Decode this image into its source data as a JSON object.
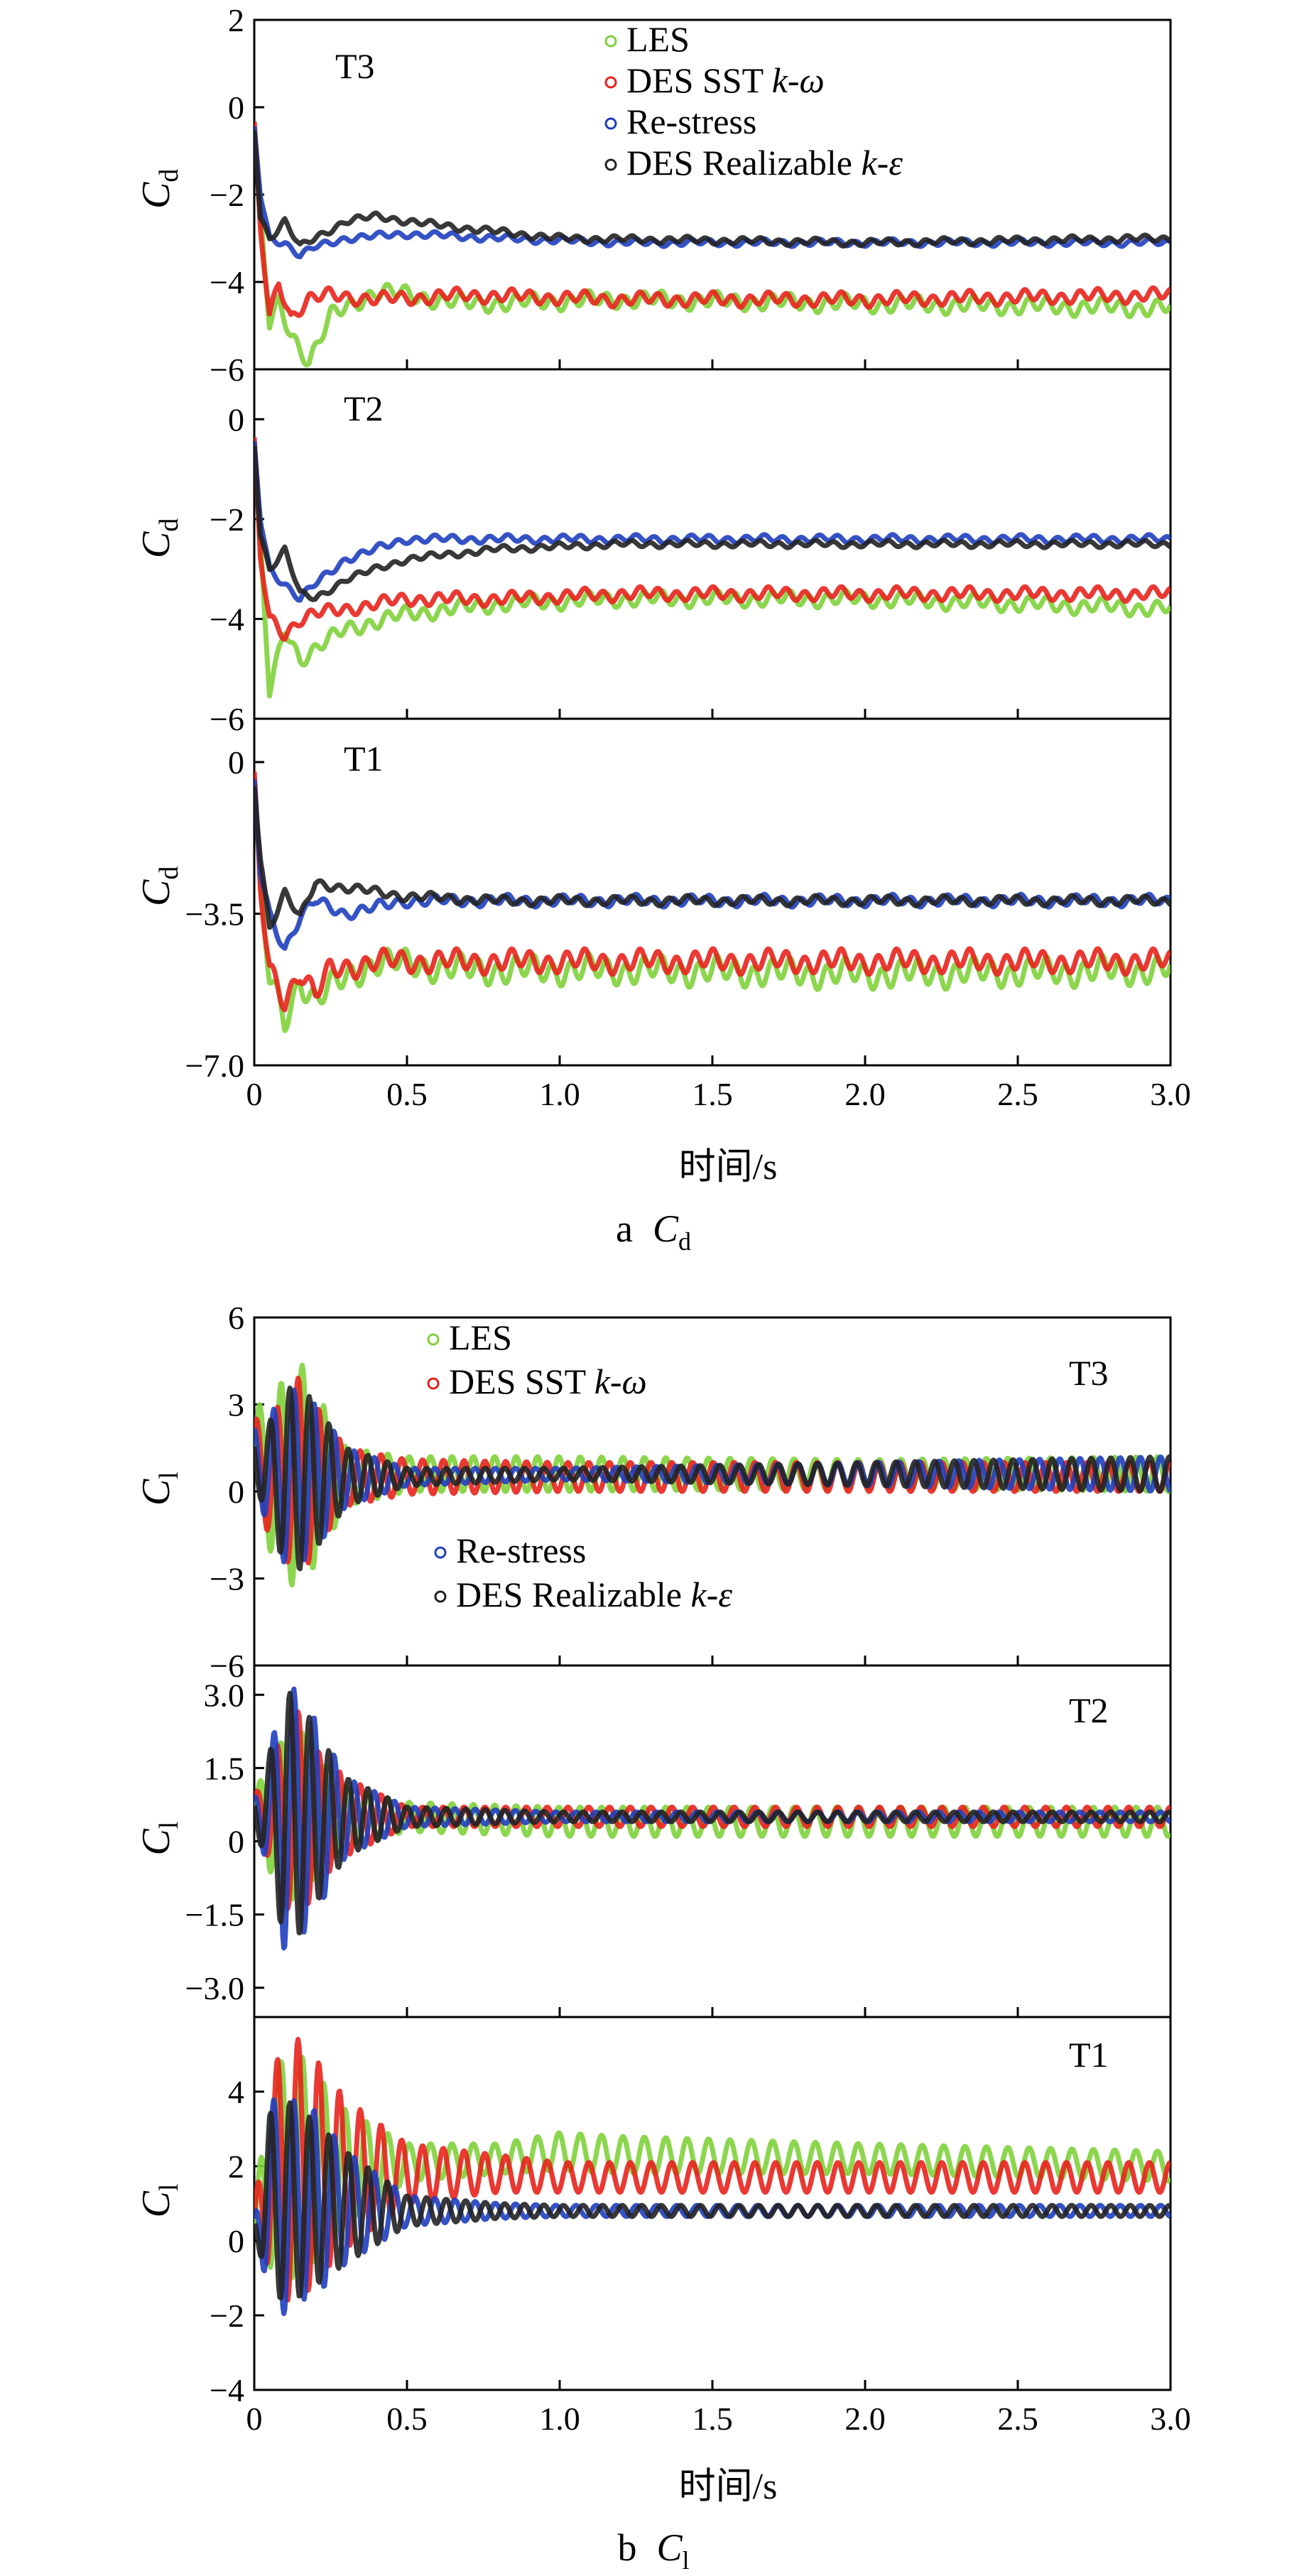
{
  "figure": {
    "caption_a": {
      "letter": "a",
      "sym": "C",
      "sub": "d"
    },
    "caption_b": {
      "letter": "b",
      "sym": "C",
      "sub": "l"
    },
    "xlabel": "时间/s"
  },
  "colors": {
    "LES": "#7fd13b",
    "DES SST k-ω": "#e8221c",
    "Re-stress": "#1f3fbf",
    "DES Realizable k-ε": "#222222"
  },
  "chart_data": [
    {
      "type": "line",
      "id": "cd_t3",
      "panel_label": "T3",
      "ylabel": {
        "sym": "C",
        "sub": "d"
      },
      "xlim": [
        0,
        3.0
      ],
      "ylim": [
        -6,
        2
      ],
      "yticks": [
        "2",
        "0",
        "−2",
        "−4",
        "−6"
      ],
      "xticks": [
        "0",
        "0.5",
        "1.0",
        "1.5",
        "2.0",
        "2.5",
        "3.0"
      ],
      "legend": [
        {
          "name": "LES",
          "series": "LES"
        },
        {
          "name": "DES SST k-ω",
          "series": "DES SST k-ω",
          "text": "DES SST ",
          "ital": "k-ω"
        },
        {
          "name": "Re-stress",
          "series": "Re-stress"
        },
        {
          "name": "DES Realizable k-ε",
          "series": "DES Realizable k-ε",
          "text": "DES Realizable ",
          "ital": "k-ε"
        }
      ],
      "legend_position": "top",
      "series": [
        {
          "name": "LES",
          "x": [
            0,
            0.02,
            0.05,
            0.08,
            0.12,
            0.18,
            0.25,
            0.4,
            0.7,
            1.2,
            2.0,
            3.0
          ],
          "values": [
            -0.5,
            -2.5,
            -5.0,
            -4.5,
            -5.2,
            -5.8,
            -4.8,
            -4.2,
            -4.5,
            -4.4,
            -4.5,
            -4.6
          ],
          "osc": 0.15
        },
        {
          "name": "DES SST k-ω",
          "x": [
            0,
            0.02,
            0.05,
            0.08,
            0.12,
            0.18,
            0.25,
            0.4,
            0.7,
            1.2,
            2.0,
            3.0
          ],
          "values": [
            -0.5,
            -2.8,
            -4.8,
            -4.0,
            -4.8,
            -4.4,
            -4.3,
            -4.4,
            -4.3,
            -4.4,
            -4.4,
            -4.3
          ],
          "osc": 0.12
        },
        {
          "name": "Re-stress",
          "x": [
            0,
            0.02,
            0.05,
            0.1,
            0.15,
            0.2,
            0.3,
            0.5,
            0.8,
            1.2,
            2.0,
            3.0
          ],
          "values": [
            -0.5,
            -2.0,
            -3.0,
            -3.1,
            -3.4,
            -3.2,
            -3.0,
            -2.9,
            -3.0,
            -3.1,
            -3.1,
            -3.1
          ],
          "osc": 0.06
        },
        {
          "name": "DES Realizable k-ε",
          "x": [
            0,
            0.02,
            0.05,
            0.1,
            0.15,
            0.2,
            0.3,
            0.4,
            0.6,
            1.0,
            2.0,
            3.0
          ],
          "values": [
            -0.5,
            -2.5,
            -3.0,
            -2.6,
            -3.2,
            -3.0,
            -2.6,
            -2.5,
            -2.7,
            -3.0,
            -3.1,
            -3.0
          ],
          "osc": 0.06
        }
      ]
    },
    {
      "type": "line",
      "id": "cd_t2",
      "panel_label": "T2",
      "ylabel": {
        "sym": "C",
        "sub": "d"
      },
      "xlim": [
        0,
        3.0
      ],
      "ylim": [
        -6,
        1
      ],
      "yticks": [
        "0",
        "−2",
        "−4",
        "−6"
      ],
      "xticks": [
        "0",
        "0.5",
        "1.0",
        "1.5",
        "2.0",
        "2.5",
        "3.0"
      ],
      "series": [
        {
          "name": "LES",
          "x": [
            0,
            0.02,
            0.05,
            0.1,
            0.15,
            0.2,
            0.3,
            0.5,
            0.8,
            1.2,
            2.0,
            3.0
          ],
          "values": [
            -0.5,
            -2.5,
            -5.5,
            -4.2,
            -4.8,
            -4.6,
            -4.2,
            -3.9,
            -3.7,
            -3.6,
            -3.6,
            -3.8
          ],
          "osc": 0.12
        },
        {
          "name": "DES SST k-ω",
          "x": [
            0,
            0.02,
            0.05,
            0.1,
            0.15,
            0.2,
            0.3,
            0.5,
            0.8,
            1.2,
            2.0,
            3.0
          ],
          "values": [
            -0.5,
            -2.8,
            -4.0,
            -4.3,
            -4.0,
            -3.9,
            -3.8,
            -3.6,
            -3.6,
            -3.5,
            -3.5,
            -3.5
          ],
          "osc": 0.1
        },
        {
          "name": "Re-stress",
          "x": [
            0,
            0.02,
            0.05,
            0.1,
            0.15,
            0.2,
            0.3,
            0.5,
            0.8,
            1.2,
            2.0,
            3.0
          ],
          "values": [
            -0.5,
            -2.0,
            -3.0,
            -3.3,
            -3.6,
            -3.3,
            -2.8,
            -2.4,
            -2.4,
            -2.4,
            -2.4,
            -2.4
          ],
          "osc": 0.06
        },
        {
          "name": "DES Realizable k-ε",
          "x": [
            0,
            0.02,
            0.05,
            0.1,
            0.15,
            0.2,
            0.3,
            0.5,
            0.8,
            1.2,
            2.0,
            3.0
          ],
          "values": [
            -0.5,
            -2.3,
            -3.0,
            -2.6,
            -3.5,
            -3.6,
            -3.2,
            -2.8,
            -2.6,
            -2.5,
            -2.5,
            -2.5
          ],
          "osc": 0.05
        }
      ]
    },
    {
      "type": "line",
      "id": "cd_t1",
      "panel_label": "T1",
      "ylabel": {
        "sym": "C",
        "sub": "d"
      },
      "xlim": [
        0,
        3.0
      ],
      "ylim": [
        -7,
        1
      ],
      "yticks": [
        "0",
        "−3.5",
        "−7.0"
      ],
      "ytick_values": [
        0,
        -3.5,
        -7.0
      ],
      "xticks": [
        "0",
        "0.5",
        "1.0",
        "1.5",
        "2.0",
        "2.5",
        "3.0"
      ],
      "series": [
        {
          "name": "LES",
          "x": [
            0,
            0.02,
            0.05,
            0.1,
            0.15,
            0.2,
            0.25,
            0.4,
            0.7,
            1.2,
            2.0,
            3.0
          ],
          "values": [
            -0.5,
            -3.0,
            -5.0,
            -6.0,
            -5.0,
            -5.5,
            -5.2,
            -4.6,
            -4.8,
            -4.8,
            -4.9,
            -4.8
          ],
          "osc": 0.25
        },
        {
          "name": "DES SST k-ω",
          "x": [
            0,
            0.02,
            0.05,
            0.1,
            0.15,
            0.2,
            0.25,
            0.4,
            0.7,
            1.2,
            2.0,
            3.0
          ],
          "values": [
            -0.5,
            -3.0,
            -4.8,
            -5.5,
            -4.8,
            -5.4,
            -4.8,
            -4.6,
            -4.6,
            -4.6,
            -4.6,
            -4.6
          ],
          "osc": 0.2
        },
        {
          "name": "Re-stress",
          "x": [
            0,
            0.02,
            0.05,
            0.1,
            0.15,
            0.2,
            0.3,
            0.5,
            0.8,
            1.2,
            2.0,
            3.0
          ],
          "values": [
            -0.5,
            -2.5,
            -3.5,
            -4.3,
            -3.6,
            -3.2,
            -3.5,
            -3.2,
            -3.2,
            -3.2,
            -3.2,
            -3.2
          ],
          "osc": 0.1
        },
        {
          "name": "DES Realizable k-ε",
          "x": [
            0,
            0.02,
            0.05,
            0.1,
            0.15,
            0.2,
            0.3,
            0.5,
            0.8,
            1.2,
            2.0,
            3.0
          ],
          "values": [
            -0.5,
            -2.2,
            -3.8,
            -3.0,
            -3.6,
            -2.8,
            -2.9,
            -3.1,
            -3.2,
            -3.2,
            -3.2,
            -3.2
          ],
          "osc": 0.08
        }
      ]
    },
    {
      "type": "line",
      "id": "cl_t3",
      "panel_label": "T3",
      "ylabel": {
        "sym": "C",
        "sub": "l"
      },
      "xlim": [
        0,
        3.0
      ],
      "ylim": [
        -6,
        6
      ],
      "yticks": [
        "6",
        "3",
        "0",
        "−3",
        "−6"
      ],
      "xticks": [
        "0",
        "0.5",
        "1.0",
        "1.5",
        "2.0",
        "2.5",
        "3.0"
      ],
      "legend": [
        {
          "name": "LES",
          "series": "LES"
        },
        {
          "name": "DES SST k-ω",
          "series": "DES SST k-ω",
          "text": "DES SST ",
          "ital": "k-ω"
        }
      ],
      "legend2": [
        {
          "name": "Re-stress",
          "series": "Re-stress"
        },
        {
          "name": "DES Realizable k-ε",
          "series": "DES Realizable k-ε",
          "text": "DES Realizable ",
          "ital": "k-ε"
        }
      ],
      "series": [
        {
          "name": "LES",
          "x": [
            0,
            0.05,
            0.1,
            0.15,
            0.2,
            0.3,
            0.5,
            1.0,
            2.0,
            3.0
          ],
          "values": [
            1.0,
            0.5,
            0.5,
            0.5,
            0.5,
            0.5,
            0.6,
            0.6,
            0.6,
            0.6
          ],
          "amp": [
            2.0,
            2.5,
            3.5,
            4.0,
            3.0,
            1.0,
            0.6,
            0.6,
            0.5,
            0.6
          ],
          "period": 0.07
        },
        {
          "name": "DES SST k-ω",
          "x": [
            0,
            0.05,
            0.1,
            0.15,
            0.2,
            0.3,
            0.5,
            1.0,
            2.0,
            3.0
          ],
          "values": [
            1.0,
            0.5,
            0.5,
            0.5,
            0.5,
            0.5,
            0.5,
            0.5,
            0.5,
            0.5
          ],
          "amp": [
            1.5,
            2.0,
            2.8,
            3.5,
            2.5,
            1.0,
            0.6,
            0.5,
            0.5,
            0.5
          ],
          "period": 0.068
        },
        {
          "name": "Re-stress",
          "x": [
            0,
            0.05,
            0.1,
            0.15,
            0.2,
            0.3,
            0.5,
            1.0,
            2.0,
            3.0
          ],
          "values": [
            1.2,
            0.6,
            0.5,
            0.5,
            0.5,
            0.5,
            0.5,
            0.6,
            0.6,
            0.6
          ],
          "amp": [
            1.0,
            2.0,
            3.0,
            3.0,
            2.5,
            1.0,
            0.3,
            0.2,
            0.4,
            0.6
          ],
          "period": 0.066
        },
        {
          "name": "DES Realizable k-ε",
          "x": [
            0,
            0.05,
            0.1,
            0.15,
            0.2,
            0.3,
            0.5,
            1.0,
            2.0,
            3.0
          ],
          "values": [
            1.2,
            0.6,
            0.5,
            0.5,
            0.5,
            0.5,
            0.5,
            0.6,
            0.6,
            0.6
          ],
          "amp": [
            0.8,
            1.8,
            3.0,
            3.2,
            2.5,
            1.0,
            0.3,
            0.2,
            0.4,
            0.6
          ],
          "period": 0.064
        }
      ]
    },
    {
      "type": "line",
      "id": "cl_t2",
      "panel_label": "T2",
      "ylabel": {
        "sym": "C",
        "sub": "l"
      },
      "xlim": [
        0,
        3.0
      ],
      "ylim": [
        -3.6,
        3.6
      ],
      "yticks": [
        "3.0",
        "1.5",
        "0",
        "−1.5",
        "−3.0"
      ],
      "ytick_values": [
        3.0,
        1.5,
        0,
        -1.5,
        -3.0
      ],
      "xticks": [
        "0",
        "0.5",
        "1.0",
        "1.5",
        "2.0",
        "2.5",
        "3.0"
      ],
      "series": [
        {
          "name": "LES",
          "x": [
            0,
            0.05,
            0.1,
            0.15,
            0.2,
            0.3,
            0.5,
            1.0,
            2.0,
            3.0
          ],
          "values": [
            0.6,
            0.6,
            0.5,
            0.5,
            0.5,
            0.5,
            0.5,
            0.4,
            0.4,
            0.4
          ],
          "amp": [
            0.3,
            1.2,
            1.6,
            1.8,
            1.2,
            0.6,
            0.3,
            0.3,
            0.3,
            0.3
          ],
          "period": 0.07
        },
        {
          "name": "DES SST k-ω",
          "x": [
            0,
            0.05,
            0.1,
            0.15,
            0.2,
            0.3,
            0.5,
            1.0,
            2.0,
            3.0
          ],
          "values": [
            0.6,
            0.6,
            0.5,
            0.5,
            0.5,
            0.5,
            0.5,
            0.5,
            0.5,
            0.5
          ],
          "amp": [
            0.3,
            1.0,
            1.8,
            2.2,
            1.4,
            0.8,
            0.2,
            0.2,
            0.2,
            0.2
          ],
          "period": 0.068
        },
        {
          "name": "Re-stress",
          "x": [
            0,
            0.05,
            0.1,
            0.15,
            0.2,
            0.3,
            0.5,
            1.0,
            2.0,
            3.0
          ],
          "values": [
            0.6,
            0.6,
            0.5,
            0.5,
            0.5,
            0.5,
            0.5,
            0.5,
            0.5,
            0.5
          ],
          "amp": [
            0.3,
            1.2,
            2.8,
            2.5,
            2.0,
            0.8,
            0.2,
            0.1,
            0.1,
            0.1
          ],
          "period": 0.066
        },
        {
          "name": "DES Realizable k-ε",
          "x": [
            0,
            0.05,
            0.1,
            0.15,
            0.2,
            0.3,
            0.5,
            1.0,
            2.0,
            3.0
          ],
          "values": [
            0.6,
            0.6,
            0.5,
            0.5,
            0.5,
            0.5,
            0.5,
            0.5,
            0.5,
            0.5
          ],
          "amp": [
            0.3,
            1.2,
            2.6,
            2.4,
            1.8,
            0.8,
            0.2,
            0.1,
            0.1,
            0.1
          ],
          "period": 0.064
        }
      ]
    },
    {
      "type": "line",
      "id": "cl_t1",
      "panel_label": "T1",
      "ylabel": {
        "sym": "C",
        "sub": "l"
      },
      "xlim": [
        0,
        3.0
      ],
      "ylim": [
        -4,
        6
      ],
      "yticks": [
        "4",
        "2",
        "0",
        "−2",
        "−4"
      ],
      "ytick_values": [
        4,
        2,
        0,
        -2,
        -4
      ],
      "xticks": [
        "0",
        "0.5",
        "1.0",
        "1.5",
        "2.0",
        "2.5",
        "3.0"
      ],
      "series": [
        {
          "name": "LES",
          "x": [
            0,
            0.05,
            0.1,
            0.15,
            0.2,
            0.3,
            0.5,
            0.8,
            1.0,
            1.2,
            2.0,
            3.0
          ],
          "values": [
            0.3,
            1.8,
            2.0,
            2.0,
            2.0,
            2.0,
            2.1,
            2.2,
            2.4,
            2.3,
            2.2,
            2.0
          ],
          "amp": [
            0.5,
            2.5,
            3.0,
            3.0,
            2.5,
            1.5,
            0.5,
            0.4,
            0.5,
            0.5,
            0.4,
            0.4
          ],
          "period": 0.07
        },
        {
          "name": "DES SST k-ω",
          "x": [
            0,
            0.05,
            0.1,
            0.15,
            0.2,
            0.3,
            0.5,
            0.8,
            1.0,
            1.2,
            2.0,
            3.0
          ],
          "values": [
            0.3,
            1.8,
            1.9,
            1.9,
            1.9,
            1.8,
            1.8,
            1.8,
            1.7,
            1.7,
            1.7,
            1.7
          ],
          "amp": [
            0.5,
            2.5,
            3.5,
            3.5,
            3.0,
            2.0,
            0.8,
            0.5,
            0.4,
            0.4,
            0.4,
            0.4
          ],
          "period": 0.068
        },
        {
          "name": "Re-stress",
          "x": [
            0,
            0.05,
            0.1,
            0.15,
            0.2,
            0.3,
            0.5,
            0.8,
            1.0,
            1.2,
            2.0,
            3.0
          ],
          "values": [
            0.3,
            1.2,
            1.0,
            1.0,
            1.0,
            0.9,
            0.8,
            0.8,
            0.8,
            0.8,
            0.8,
            0.8
          ],
          "amp": [
            0.3,
            2.5,
            3.0,
            2.6,
            2.5,
            1.5,
            0.4,
            0.2,
            0.15,
            0.15,
            0.15,
            0.15
          ],
          "period": 0.066
        },
        {
          "name": "DES Realizable k-ε",
          "x": [
            0,
            0.05,
            0.1,
            0.15,
            0.2,
            0.3,
            0.5,
            0.8,
            1.0,
            1.2,
            2.0,
            3.0
          ],
          "values": [
            0.3,
            1.2,
            1.0,
            1.0,
            1.0,
            0.9,
            0.8,
            0.8,
            0.8,
            0.8,
            0.8,
            0.8
          ],
          "amp": [
            0.3,
            2.2,
            2.8,
            2.5,
            2.2,
            1.5,
            0.4,
            0.2,
            0.15,
            0.15,
            0.15,
            0.15
          ],
          "period": 0.064
        }
      ]
    }
  ]
}
